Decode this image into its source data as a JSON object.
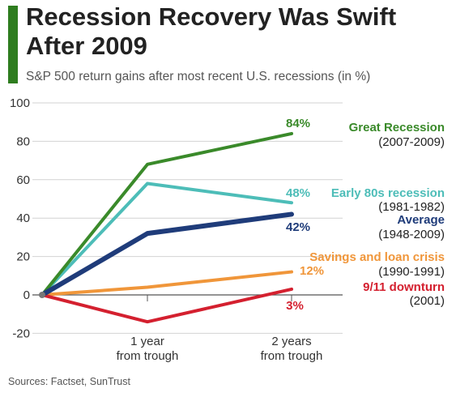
{
  "header": {
    "title_line1": "Recession Recovery Was Swift",
    "title_line2": "After 2009",
    "subtitle": "S&P 500 return gains after most recent U.S. recessions (in %)"
  },
  "footer": {
    "source": "Sources: Factset, SunTrust"
  },
  "chart_data": {
    "type": "line",
    "title": "Recession Recovery Was Swift After 2009",
    "subtitle": "S&P 500 return gains after most recent U.S. recessions (in %)",
    "x": [
      "",
      "1 year from trough",
      "2 years from trough"
    ],
    "x_tick_labels": [
      [
        "1 year",
        "from trough"
      ],
      [
        "2 years",
        "from trough"
      ]
    ],
    "y_ticks": [
      100,
      80,
      60,
      40,
      20,
      0,
      -20
    ],
    "ylim": [
      -20,
      100
    ],
    "grid": true,
    "series": [
      {
        "name": "Great Recession",
        "period": "(2007-2009)",
        "values": [
          0,
          68,
          84
        ],
        "end_label": "84%",
        "color": "#3a8a2a"
      },
      {
        "name": "Early 80s recession",
        "period": "(1981-1982)",
        "values": [
          0,
          58,
          48
        ],
        "end_label": "48%",
        "color": "#4dbdb8"
      },
      {
        "name": "Average",
        "period": "(1948-2009)",
        "values": [
          0,
          32,
          42
        ],
        "end_label": "42%",
        "color": "#1f3c7a"
      },
      {
        "name": "Savings and loan crisis",
        "period": "(1990-1991)",
        "values": [
          0,
          4,
          12
        ],
        "end_label": "12%",
        "color": "#f0963a"
      },
      {
        "name": "9/11 downturn",
        "period": "(2001)",
        "values": [
          0,
          -14,
          3
        ],
        "end_label": "3%",
        "color": "#d4202f"
      }
    ]
  }
}
